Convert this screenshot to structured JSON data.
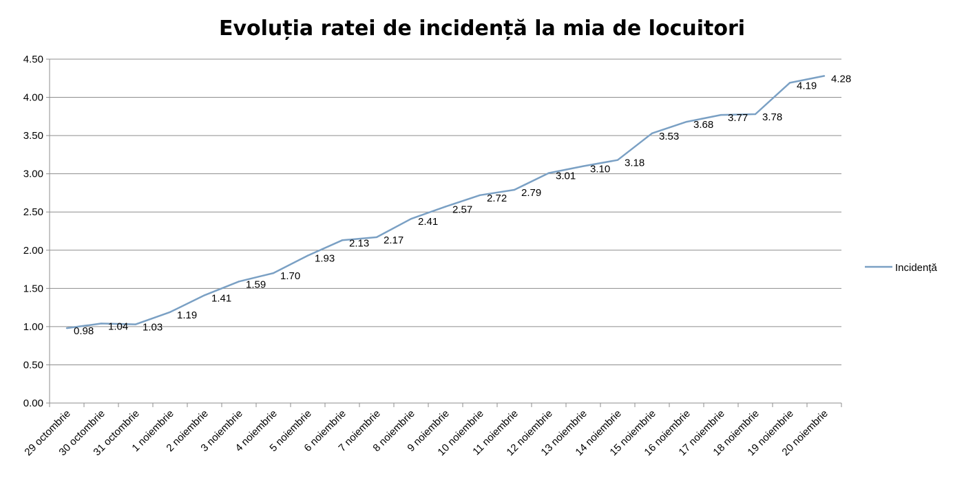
{
  "chart_data": {
    "type": "line",
    "title": "Evoluția ratei de incidență la mia de locuitori",
    "categories": [
      "29 octombrie",
      "30 octombrie",
      "31 octombrie",
      "1 noiembrie",
      "2 noiembrie",
      "3 noiembrie",
      "4 noiembrie",
      "5 noiembrie",
      "6 noiembrie",
      "7 noiembrie",
      "8 noiembrie",
      "9 noiembrie",
      "10 noiembrie",
      "11 noiembrie",
      "12 noiembrie",
      "13 noiembrie",
      "14 noiembrie",
      "15 noiembrie",
      "16 noiembrie",
      "17 noiembrie",
      "18 noiembrie",
      "19 noiembrie",
      "20 noiembrie"
    ],
    "series": [
      {
        "name": "Incidență",
        "values": [
          0.98,
          1.04,
          1.03,
          1.19,
          1.41,
          1.59,
          1.7,
          1.93,
          2.13,
          2.17,
          2.41,
          2.57,
          2.72,
          2.79,
          3.01,
          3.1,
          3.18,
          3.53,
          3.68,
          3.77,
          3.78,
          4.19,
          4.28
        ],
        "labels": [
          "0.98",
          "1.04",
          "1.03",
          "1.19",
          "1.41",
          "1.59",
          "1.70",
          "1.93",
          "2.13",
          "2.17",
          "2.41",
          "2.57",
          "2.72",
          "2.79",
          "3.01",
          "3.10",
          "3.18",
          "3.53",
          "3.68",
          "3.77",
          "3.78",
          "4.19",
          "4.28"
        ]
      }
    ],
    "yticks": [
      "0.00",
      "0.50",
      "1.00",
      "1.50",
      "2.00",
      "2.50",
      "3.00",
      "3.50",
      "4.00",
      "4.50"
    ],
    "ylim": [
      0,
      4.5
    ],
    "grid": true,
    "legend": "right",
    "line_color": "#7aa0c4",
    "grid_color": "#8c8c8c"
  }
}
